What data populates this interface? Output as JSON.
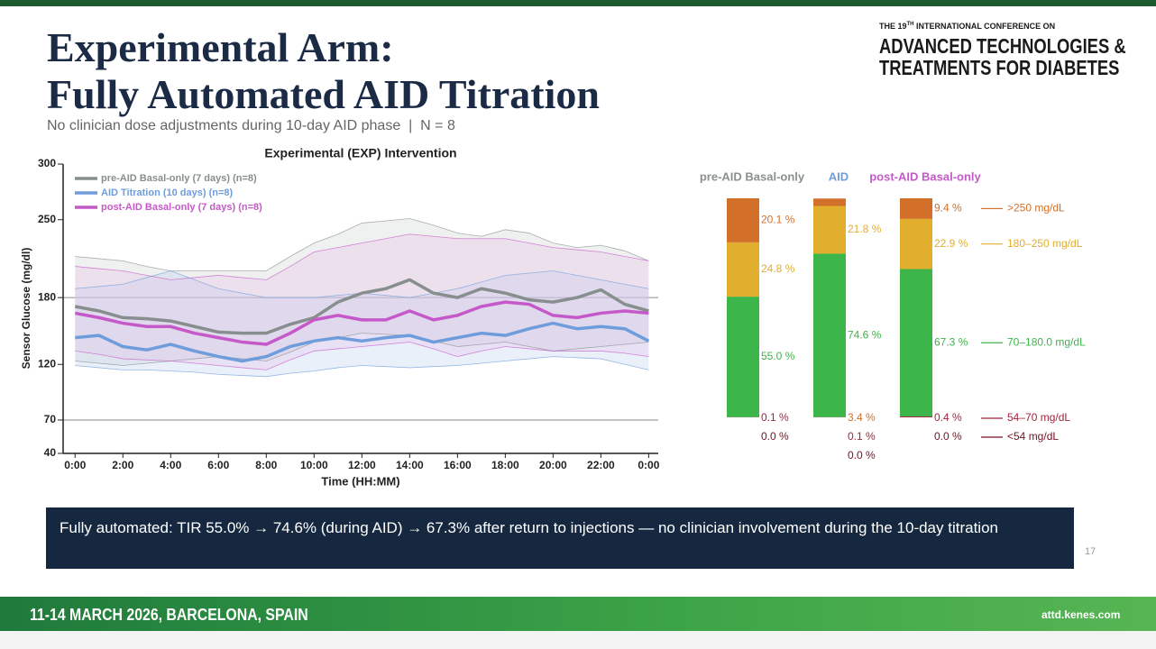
{
  "slide": {
    "title_line1": "Experimental Arm:",
    "title_line2": "Fully Automated AID Titration",
    "subtitle": "No clinician dose adjustments during 10-day AID phase  |  N = 8",
    "logo_small_pre": "THE 19",
    "logo_small_sup": "TH",
    "logo_small_post": " INTERNATIONAL CONFERENCE ON",
    "logo_line1": "ADVANCED TECHNOLOGIES &",
    "logo_line2": "TREATMENTS FOR DIABETES",
    "callout": "Fully automated: TIR 55.0% → 74.6% (during AID) → 67.3% after return to injections — no clinician involvement during the 10-day titration",
    "page_number": "17",
    "footer_left": "11-14 MARCH 2026, BARCELONA, SPAIN",
    "footer_right": "attd.kenes.com"
  },
  "chart_data": [
    {
      "type": "line",
      "title": "Experimental (EXP) Intervention",
      "xlabel": "Time (HH:MM)",
      "ylabel": "Sensor Glucose (mg/dl)",
      "x": [
        0,
        1,
        2,
        3,
        4,
        5,
        6,
        7,
        8,
        9,
        10,
        11,
        12,
        13,
        14,
        15,
        16,
        17,
        18,
        19,
        20,
        21,
        22,
        23,
        24
      ],
      "xlim": [
        -0.5,
        24.4
      ],
      "xticks": [
        {
          "value": 0,
          "label": "0:00"
        },
        {
          "value": 2,
          "label": "2:00"
        },
        {
          "value": 4,
          "label": "4:00"
        },
        {
          "value": 6,
          "label": "6:00"
        },
        {
          "value": 8,
          "label": "8:00"
        },
        {
          "value": 10,
          "label": "10:00"
        },
        {
          "value": 12,
          "label": "12:00"
        },
        {
          "value": 14,
          "label": "14:00"
        },
        {
          "value": 16,
          "label": "16:00"
        },
        {
          "value": 18,
          "label": "18:00"
        },
        {
          "value": 20,
          "label": "20:00"
        },
        {
          "value": 22,
          "label": "22:00"
        },
        {
          "value": 24,
          "label": "0:00"
        }
      ],
      "ylim": [
        40,
        300
      ],
      "yticks": [
        40,
        70,
        120,
        180,
        250,
        300
      ],
      "hlines": [
        70,
        180
      ],
      "series": [
        {
          "name": "pre-AID Basal-only (7 days) (n=8)",
          "color": "#878f8e",
          "band_color": "#c9cdcd",
          "values": [
            172,
            168,
            162,
            161,
            159,
            154,
            149,
            148,
            148,
            156,
            162,
            176,
            184,
            188,
            196,
            184,
            180,
            188,
            184,
            178,
            176,
            180,
            187,
            174,
            168
          ],
          "upper": [
            217,
            215,
            213,
            208,
            204,
            204,
            204,
            204,
            204,
            217,
            229,
            237,
            247,
            249,
            251,
            245,
            238,
            235,
            241,
            238,
            229,
            225,
            227,
            222,
            213
          ],
          "lower": [
            123,
            121,
            119,
            121,
            123,
            125,
            127,
            125,
            123,
            131,
            140,
            144,
            148,
            147,
            146,
            141,
            136,
            138,
            140,
            136,
            132,
            134,
            136,
            138,
            140
          ]
        },
        {
          "name": "AID Titration (10 days) (n=8)",
          "color": "#6f9ddb",
          "band_color": "#b9cdee",
          "values": [
            144,
            146,
            136,
            133,
            138,
            132,
            127,
            123,
            127,
            136,
            141,
            144,
            141,
            144,
            146,
            140,
            144,
            148,
            146,
            152,
            157,
            152,
            154,
            152,
            141
          ],
          "upper": [
            188,
            190,
            192,
            198,
            204,
            196,
            188,
            184,
            180,
            180,
            180,
            182,
            184,
            182,
            180,
            184,
            188,
            194,
            200,
            202,
            204,
            200,
            196,
            192,
            188
          ],
          "lower": [
            119,
            117,
            115,
            115,
            114,
            113,
            111,
            110,
            109,
            112,
            114,
            117,
            119,
            118,
            117,
            118,
            119,
            121,
            123,
            125,
            127,
            126,
            125,
            120,
            115
          ]
        },
        {
          "name": "post-AID Basal-only (7 days) (n=8)",
          "color": "#c659c9",
          "band_color": "#e6bde8",
          "values": [
            166,
            162,
            157,
            154,
            154,
            148,
            144,
            140,
            138,
            148,
            160,
            164,
            160,
            160,
            168,
            160,
            164,
            172,
            176,
            174,
            164,
            162,
            166,
            168,
            166
          ],
          "upper": [
            208,
            206,
            204,
            200,
            196,
            198,
            200,
            198,
            196,
            208,
            221,
            225,
            229,
            233,
            237,
            235,
            233,
            233,
            233,
            229,
            225,
            223,
            221,
            217,
            213
          ],
          "lower": [
            132,
            129,
            125,
            124,
            123,
            121,
            119,
            117,
            115,
            124,
            132,
            134,
            136,
            138,
            140,
            134,
            127,
            132,
            136,
            134,
            132,
            132,
            132,
            130,
            127
          ]
        }
      ]
    },
    {
      "type": "stacked-bar",
      "categories": [
        "pre-AID Basal-only",
        "AID",
        "post-AID Basal-only"
      ],
      "category_colors": [
        "#8a9090",
        "#6f9ddb",
        "#c659c9"
      ],
      "ylim": [
        0,
        100
      ],
      "series": [
        {
          "name": "<54 mg/dL",
          "color": "#7a1020",
          "values": [
            0.0,
            0.0,
            0.0
          ],
          "value_labels": [
            "0.0 %",
            "0.0 %",
            "0.0 %"
          ]
        },
        {
          "name": "54–70 mg/dL",
          "color": "#a3243b",
          "values": [
            0.1,
            0.1,
            0.4
          ],
          "value_labels": [
            "0.1 %",
            "0.1 %",
            "0.4 %"
          ]
        },
        {
          "name": "70–180.0 mg/dL",
          "color": "#3cb54a",
          "values": [
            55.0,
            74.6,
            67.3
          ],
          "value_labels": [
            "55.0 %",
            "74.6 %",
            "67.3 %"
          ]
        },
        {
          "name": "180–250 mg/dL",
          "color": "#e1ae2e",
          "values": [
            24.8,
            21.8,
            22.9
          ],
          "value_labels": [
            "24.8 %",
            "21.8 %",
            "22.9 %"
          ]
        },
        {
          "name": ">250 mg/dL",
          "color": "#d2702a",
          "values": [
            20.1,
            3.4,
            9.4
          ],
          "value_labels": [
            "20.1 %",
            "3.4 %",
            "9.4 %"
          ]
        }
      ]
    }
  ]
}
